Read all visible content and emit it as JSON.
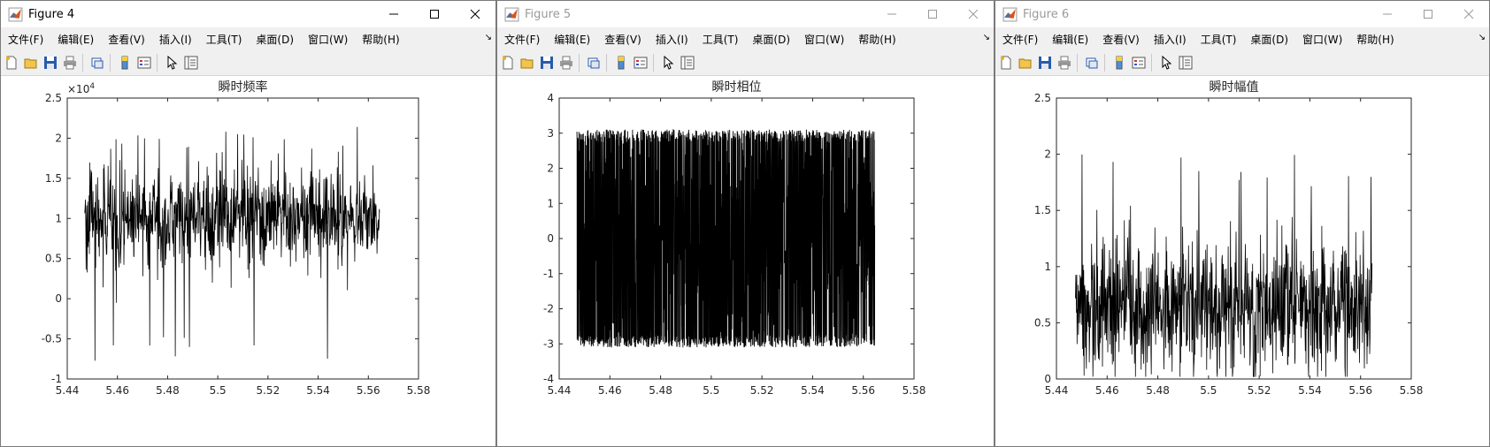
{
  "menu_labels": [
    "文件(F)",
    "编辑(E)",
    "查看(V)",
    "插入(I)",
    "工具(T)",
    "桌面(D)",
    "窗口(W)",
    "帮助(H)"
  ],
  "toolbar_icons": [
    "new-figure-icon",
    "open-file-icon",
    "save-icon",
    "print-icon",
    "link-plot-icon",
    "insert-colorbar-icon",
    "insert-legend-icon",
    "edit-plot-icon",
    "property-inspector-icon"
  ],
  "colors": {
    "active_title": "#000000",
    "inactive_title": "#9a9a9a",
    "plot_line": "#000000",
    "axes_bg": "#ffffff",
    "figure_bg": "#ffffff"
  },
  "windows": [
    {
      "title": "Figure 4",
      "active": true,
      "chart_data": {
        "type": "line",
        "title": "瞬时频率",
        "xlabel": "",
        "ylabel": "",
        "xlim": [
          5.44,
          5.58
        ],
        "ylim": [
          -1,
          2.5
        ],
        "exponent_label": "×10",
        "exponent_power": "4",
        "xticks": [
          "5.44",
          "5.46",
          "5.48",
          "5.5",
          "5.52",
          "5.54",
          "5.56",
          "5.58"
        ],
        "yticks": [
          "-1",
          "-0.5",
          "0",
          "0.5",
          "1",
          "1.5",
          "2",
          "2.5"
        ],
        "series": [
          {
            "x_range": [
              5.447,
              5.5645
            ],
            "center": 1.0,
            "spread": 0.3,
            "min": -0.78,
            "max": 2.14,
            "n": 900
          }
        ]
      }
    },
    {
      "title": "Figure 5",
      "active": false,
      "chart_data": {
        "type": "line",
        "title": "瞬时相位",
        "xlabel": "",
        "ylabel": "",
        "xlim": [
          5.44,
          5.58
        ],
        "ylim": [
          -4,
          4
        ],
        "exponent_label": "",
        "exponent_power": "",
        "xticks": [
          "5.44",
          "5.46",
          "5.48",
          "5.5",
          "5.52",
          "5.54",
          "5.56",
          "5.58"
        ],
        "yticks": [
          "-4",
          "-3",
          "-2",
          "-1",
          "0",
          "1",
          "2",
          "3",
          "4"
        ],
        "series": [
          {
            "x_range": [
              5.447,
              5.5645
            ],
            "center": 0,
            "spread": 3.0,
            "min": -3.1,
            "max": 3.1,
            "n": 2500
          }
        ]
      }
    },
    {
      "title": "Figure 6",
      "active": false,
      "chart_data": {
        "type": "line",
        "title": "瞬时幅值",
        "xlabel": "",
        "ylabel": "",
        "xlim": [
          5.44,
          5.58
        ],
        "ylim": [
          0,
          2.5
        ],
        "exponent_label": "",
        "exponent_power": "",
        "xticks": [
          "5.44",
          "5.46",
          "5.48",
          "5.5",
          "5.52",
          "5.54",
          "5.56",
          "5.58"
        ],
        "yticks": [
          "0",
          "0.5",
          "1",
          "1.5",
          "2",
          "2.5"
        ],
        "series": [
          {
            "x_range": [
              5.4475,
              5.5645
            ],
            "center": 0.65,
            "spread": 0.3,
            "min": 0.02,
            "max": 2.0,
            "n": 900
          }
        ]
      }
    }
  ]
}
